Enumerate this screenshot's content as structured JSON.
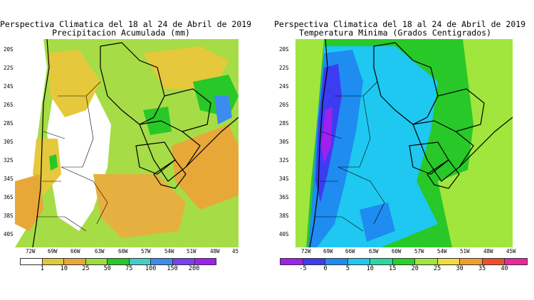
{
  "left_panel": {
    "title_line1": "Perspectiva Climatica del 18 al 24 de Abril de 2019",
    "title_line2": "Precipitacion Acumulada (mm)",
    "lat_labels": [
      "20S",
      "22S",
      "24S",
      "26S",
      "28S",
      "30S",
      "32S",
      "34S",
      "36S",
      "38S",
      "40S"
    ],
    "lon_labels": [
      "72W",
      "69W",
      "66W",
      "63W",
      "60W",
      "57W",
      "54W",
      "51W",
      "48W",
      "45"
    ],
    "colorbar": {
      "labels": [
        "1",
        "10",
        "25",
        "50",
        "75",
        "100",
        "150",
        "200"
      ],
      "colors": [
        "#ffffff",
        "#e0c838",
        "#e8a838",
        "#a0dc3c",
        "#28c828",
        "#40d0c8",
        "#3c8cf0",
        "#7840f0",
        "#a020f0"
      ]
    }
  },
  "right_panel": {
    "title_line1": "Perspectiva Climatica del 18 al 24 de Abril de 2019",
    "title_line2": "Temperatura Minima (Grados Centigrados)",
    "lat_labels": [
      "20S",
      "22S",
      "24S",
      "26S",
      "28S",
      "30S",
      "32S",
      "34S",
      "36S",
      "38S",
      "40S"
    ],
    "lon_labels": [
      "72W",
      "69W",
      "66W",
      "63W",
      "60W",
      "57W",
      "54W",
      "51W",
      "48W",
      "45W"
    ],
    "colorbar": {
      "labels": [
        "-5",
        "0",
        "5",
        "10",
        "15",
        "20",
        "25",
        "30",
        "35",
        "40"
      ],
      "colors": [
        "#a020f0",
        "#3c3cf0",
        "#1e8cf0",
        "#1ec8f0",
        "#28d8a0",
        "#28d228",
        "#a0e63c",
        "#f0dc3c",
        "#f0a028",
        "#f05028",
        "#e8289c"
      ]
    }
  }
}
